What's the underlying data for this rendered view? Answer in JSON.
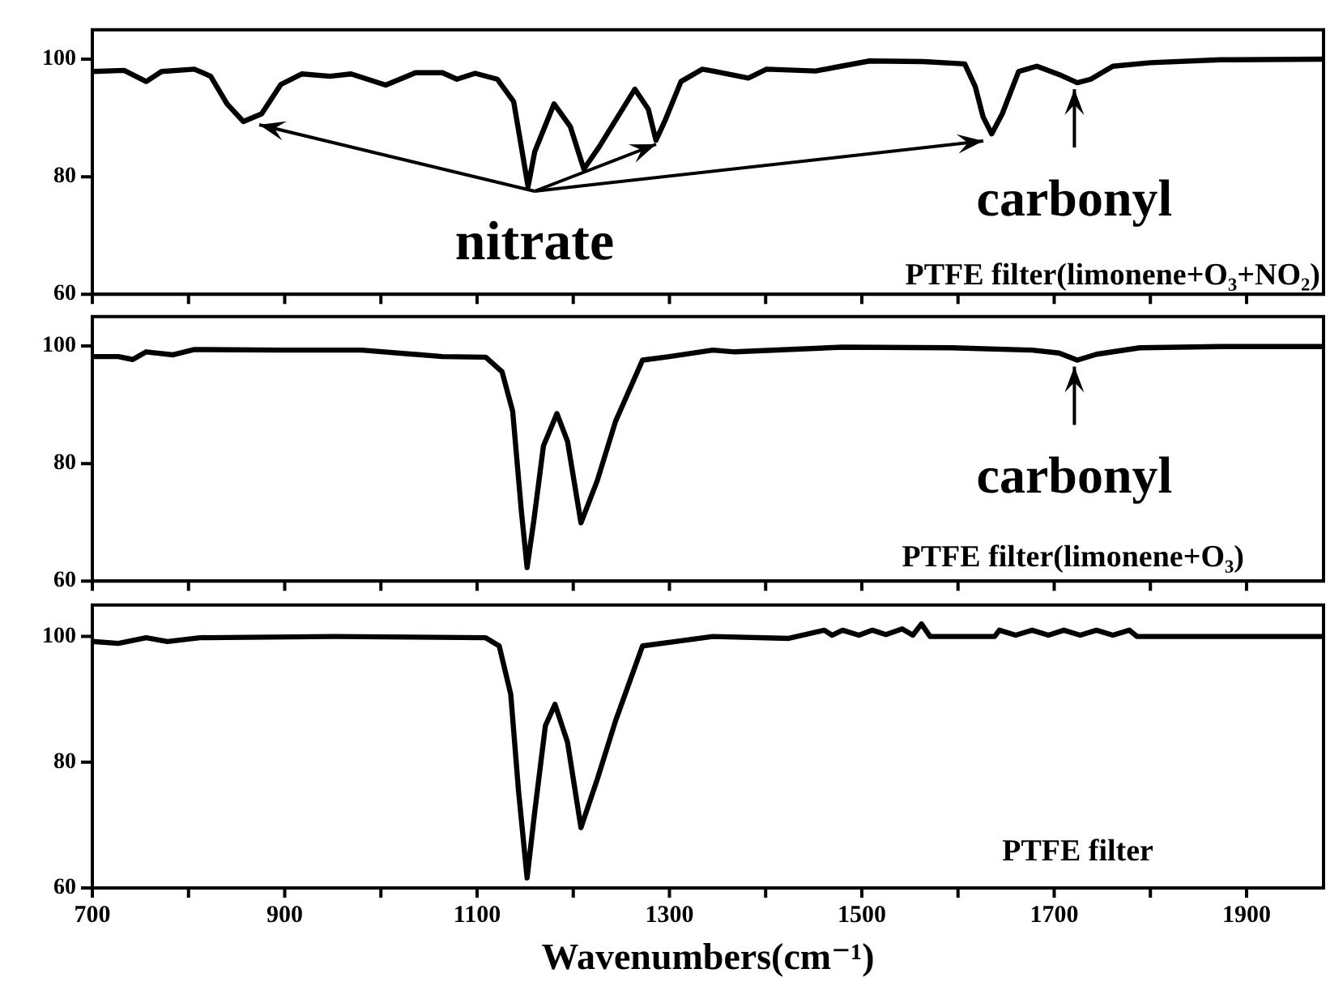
{
  "chart_data": [
    {
      "type": "line",
      "x": [
        700,
        733,
        756,
        772,
        806,
        823,
        840,
        857,
        876,
        896,
        918,
        947,
        969,
        1005,
        1036,
        1064,
        1079,
        1098,
        1121,
        1138,
        1146,
        1153,
        1160,
        1180,
        1197,
        1211,
        1227,
        1264,
        1278,
        1286,
        1295,
        1312,
        1334,
        1345,
        1382,
        1401,
        1452,
        1475,
        1508,
        1564,
        1607,
        1618,
        1626,
        1635,
        1646,
        1663,
        1682,
        1705,
        1724,
        1738,
        1761,
        1800,
        1873,
        1980
      ],
      "series": [
        {
          "name": "PTFE filter(limonene+O₃+NO₂)",
          "color": "#000000",
          "values": [
            97.9,
            98.1,
            96.2,
            97.9,
            98.3,
            97.1,
            92.4,
            89.4,
            90.7,
            95.7,
            97.5,
            97.1,
            97.5,
            95.6,
            97.7,
            97.7,
            96.6,
            97.6,
            96.6,
            92.8,
            85.1,
            78.3,
            84.3,
            92.4,
            88.5,
            81.3,
            85.1,
            94.9,
            91.5,
            86.2,
            89.4,
            96.2,
            98.3,
            98.0,
            96.8,
            98.3,
            98.0,
            98.7,
            99.7,
            99.6,
            99.2,
            95.3,
            90.2,
            87.3,
            90.7,
            97.9,
            98.8,
            97.4,
            96.0,
            96.6,
            98.8,
            99.4,
            99.9,
            100
          ]
        }
      ],
      "xlim": [
        700,
        1980
      ],
      "xticks": [
        700,
        {
          "value": 800,
          "label": null
        },
        900,
        {
          "value": 1000,
          "label": null
        },
        1100,
        {
          "value": 1200,
          "label": null
        },
        1300,
        {
          "value": 1400,
          "label": null
        },
        1500,
        {
          "value": 1600,
          "label": null
        },
        1700,
        {
          "value": 1800,
          "label": null
        },
        1900
      ],
      "ylim": [
        60,
        105
      ],
      "yticks": [
        60,
        80,
        100
      ],
      "tick_labels": "y",
      "annotations": [
        "nitrate",
        {
          "text": "carbonyl",
          "x": 1721,
          "y": 96
        }
      ]
    },
    {
      "type": "line",
      "x": [
        700,
        727,
        742,
        756,
        784,
        806,
        896,
        980,
        1064,
        1109,
        1126,
        1137,
        1146,
        1152,
        1159,
        1169,
        1183,
        1194,
        1208,
        1225,
        1244,
        1272,
        1300,
        1345,
        1368,
        1480,
        1593,
        1677,
        1705,
        1724,
        1744,
        1789,
        1873,
        1980
      ],
      "series": [
        {
          "name": "PTFE filter(limonene+O₃)",
          "color": "#000000",
          "values": [
            98.2,
            98.2,
            97.7,
            99.0,
            98.5,
            99.4,
            99.3,
            99.3,
            98.2,
            98.1,
            95.6,
            88.9,
            72.0,
            62.3,
            70.3,
            83.0,
            88.5,
            83.8,
            69.9,
            77.1,
            87.2,
            97.6,
            98.2,
            99.3,
            99.0,
            99.8,
            99.7,
            99.3,
            98.8,
            97.6,
            98.6,
            99.7,
            99.9,
            99.9
          ]
        }
      ],
      "xlim": [
        700,
        1980
      ],
      "xticks": [
        700,
        {
          "value": 800,
          "label": null
        },
        900,
        {
          "value": 1000,
          "label": null
        },
        1100,
        {
          "value": 1200,
          "label": null
        },
        1300,
        {
          "value": 1400,
          "label": null
        },
        1500,
        {
          "value": 1600,
          "label": null
        },
        1700,
        {
          "value": 1800,
          "label": null
        },
        1900
      ],
      "ylim": [
        60,
        105
      ],
      "yticks": [
        60,
        80,
        100
      ],
      "tick_labels": "y",
      "annotations": [
        {
          "text": "carbonyl",
          "x": 1721,
          "y": 97.6
        }
      ]
    },
    {
      "type": "line",
      "x": [
        700,
        727,
        756,
        778,
        812,
        952,
        1109,
        1123,
        1135,
        1143,
        1152,
        1160,
        1171,
        1181,
        1194,
        1208,
        1225,
        1244,
        1272,
        1306,
        1345,
        1424,
        1461,
        1469,
        1480,
        1497,
        1511,
        1525,
        1542,
        1553,
        1562,
        1571,
        1638,
        1643,
        1660,
        1677,
        1694,
        1710,
        1727,
        1744,
        1761,
        1778,
        1786,
        1980
      ],
      "series": [
        {
          "name": "PTFE filter",
          "color": "#000000",
          "values": [
            99.2,
            98.9,
            99.8,
            99.2,
            99.8,
            100,
            99.8,
            98.5,
            90.8,
            75.6,
            61.6,
            72.2,
            85.8,
            89.2,
            83.2,
            69.6,
            77.3,
            86.6,
            98.5,
            99.2,
            100,
            99.7,
            101.0,
            100.2,
            101.0,
            100.2,
            101.0,
            100.3,
            101.2,
            100.2,
            102.0,
            100,
            100,
            101,
            100.2,
            101,
            100.2,
            101,
            100.2,
            101,
            100.2,
            101,
            100,
            100
          ]
        }
      ],
      "xlim": [
        700,
        1980
      ],
      "xticks": [
        700,
        {
          "value": 800,
          "label": null
        },
        900,
        {
          "value": 1000,
          "label": null
        },
        1100,
        {
          "value": 1200,
          "label": null
        },
        1300,
        {
          "value": 1400,
          "label": null
        },
        1500,
        {
          "value": 1600,
          "label": null
        },
        1700,
        {
          "value": 1800,
          "label": null
        },
        1900
      ],
      "ylim": [
        60,
        105
      ],
      "yticks": [
        60,
        80,
        100
      ],
      "xlabel": "Wavenumbers(cm⁻¹)"
    }
  ]
}
